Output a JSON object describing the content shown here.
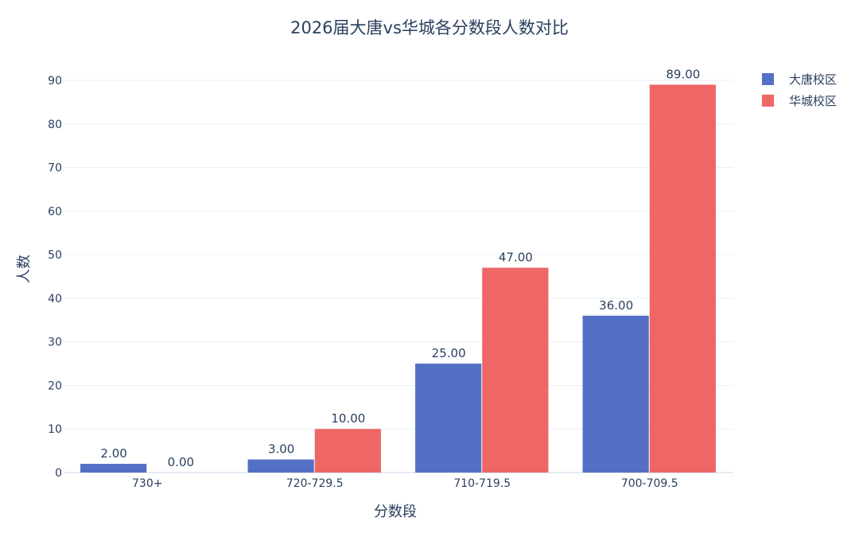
{
  "chart_data": {
    "type": "bar",
    "title": "2026届大唐vs华城各分数段人数对比",
    "xlabel": "分数段",
    "ylabel": "人数",
    "categories": [
      "730+",
      "720-729.5",
      "710-719.5",
      "700-709.5"
    ],
    "ylim": [
      0,
      90
    ],
    "yticks": [
      0,
      10,
      20,
      30,
      40,
      50,
      60,
      70,
      80,
      90
    ],
    "grid": true,
    "legend_position": "top-right",
    "value_label_format": "2 decimals",
    "series": [
      {
        "name": "大唐校区",
        "color": "#5470c6",
        "values": [
          2,
          3,
          25,
          36
        ]
      },
      {
        "name": "华城校区",
        "color": "#ee6666",
        "values": [
          0,
          10,
          47,
          89
        ]
      }
    ]
  }
}
